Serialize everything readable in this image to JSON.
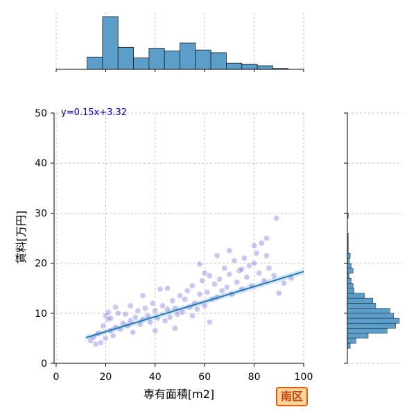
{
  "chart_data": {
    "type": "scatter",
    "xlabel": "専有面積[m2]",
    "ylabel": "賃料[万円]",
    "xlim": [
      0,
      100
    ],
    "ylim": [
      0,
      50
    ],
    "x_ticks": [
      "0",
      "20",
      "40",
      "60",
      "80",
      "100"
    ],
    "y_ticks": [
      "0",
      "10",
      "20",
      "30",
      "40",
      "50"
    ],
    "grid": true,
    "annotation": "y=0.15x+3.32",
    "badge": "南区",
    "regression": {
      "slope": 0.15,
      "intercept": 3.32,
      "x_range": [
        12,
        100
      ]
    },
    "colors": {
      "points": "#3a3ad0",
      "line": "#1f77b4",
      "hist_fill": "#5a9ec9",
      "hist_edge": "#1a1a1a"
    },
    "scatter_points_sample": [
      [
        14,
        4.5
      ],
      [
        15,
        5.2
      ],
      [
        16,
        3.8
      ],
      [
        17,
        6.0
      ],
      [
        18,
        4.1
      ],
      [
        19,
        7.5
      ],
      [
        20,
        9.5
      ],
      [
        20,
        5.0
      ],
      [
        21,
        8.8
      ],
      [
        21,
        10.2
      ],
      [
        22,
        6.5
      ],
      [
        22,
        9.0
      ],
      [
        23,
        5.5
      ],
      [
        24,
        7.2
      ],
      [
        25,
        10.0
      ],
      [
        26,
        6.8
      ],
      [
        27,
        8.0
      ],
      [
        28,
        9.8
      ],
      [
        29,
        7.5
      ],
      [
        30,
        8.5
      ],
      [
        31,
        6.2
      ],
      [
        32,
        9.2
      ],
      [
        33,
        10.5
      ],
      [
        34,
        7.8
      ],
      [
        35,
        8.8
      ],
      [
        36,
        11.0
      ],
      [
        37,
        9.5
      ],
      [
        38,
        8.2
      ],
      [
        39,
        12.0
      ],
      [
        40,
        10.5
      ],
      [
        41,
        9.0
      ],
      [
        42,
        14.8
      ],
      [
        43,
        11.5
      ],
      [
        44,
        8.5
      ],
      [
        45,
        10.8
      ],
      [
        46,
        9.2
      ],
      [
        47,
        12.5
      ],
      [
        48,
        11.0
      ],
      [
        49,
        9.8
      ],
      [
        50,
        13.5
      ],
      [
        51,
        10.2
      ],
      [
        52,
        12.8
      ],
      [
        53,
        14.5
      ],
      [
        54,
        11.2
      ],
      [
        55,
        15.5
      ],
      [
        56,
        12.0
      ],
      [
        57,
        10.8
      ],
      [
        58,
        13.8
      ],
      [
        59,
        16.5
      ],
      [
        60,
        11.5
      ],
      [
        61,
        14.2
      ],
      [
        62,
        17.5
      ],
      [
        63,
        12.8
      ],
      [
        64,
        15.8
      ],
      [
        65,
        13.2
      ],
      [
        66,
        16.8
      ],
      [
        67,
        14.5
      ],
      [
        68,
        19.0
      ],
      [
        69,
        15.2
      ],
      [
        70,
        17.8
      ],
      [
        71,
        13.8
      ],
      [
        72,
        20.5
      ],
      [
        73,
        16.2
      ],
      [
        74,
        18.5
      ],
      [
        75,
        14.8
      ],
      [
        76,
        21.0
      ],
      [
        77,
        17.2
      ],
      [
        78,
        19.5
      ],
      [
        79,
        15.5
      ],
      [
        80,
        20.0
      ],
      [
        81,
        22.0
      ],
      [
        82,
        18.0
      ],
      [
        83,
        24.0
      ],
      [
        84,
        16.5
      ],
      [
        85,
        21.5
      ],
      [
        86,
        19.0
      ],
      [
        88,
        17.5
      ],
      [
        89,
        29.0
      ],
      [
        90,
        14.0
      ],
      [
        92,
        16.0
      ],
      [
        95,
        17.0
      ],
      [
        24,
        11.2
      ],
      [
        30,
        11.5
      ],
      [
        35,
        13.5
      ],
      [
        45,
        15.0
      ],
      [
        55,
        9.5
      ],
      [
        60,
        18.0
      ],
      [
        65,
        21.5
      ],
      [
        70,
        22.5
      ],
      [
        75,
        18.8
      ],
      [
        80,
        23.5
      ],
      [
        85,
        25.0
      ],
      [
        62,
        8.2
      ],
      [
        48,
        7.0
      ],
      [
        40,
        6.5
      ],
      [
        58,
        19.8
      ]
    ],
    "top_histogram": {
      "bin_edges": [
        0,
        6.25,
        12.5,
        18.75,
        25,
        31.25,
        37.5,
        43.75,
        50,
        56.25,
        62.5,
        68.75,
        75,
        81.25,
        87.5,
        93.75,
        100
      ],
      "counts": [
        0,
        0,
        14,
        60,
        25,
        13,
        24,
        21,
        30,
        22,
        19,
        7,
        6,
        4,
        1,
        0
      ]
    },
    "right_histogram": {
      "bin_width": 1,
      "bin_starts": [
        3,
        4,
        5,
        6,
        7,
        8,
        9,
        10,
        11,
        12,
        13,
        14,
        15,
        16,
        17,
        18,
        19,
        20,
        21,
        22,
        23,
        24,
        25,
        26,
        27,
        28,
        29
      ],
      "counts": [
        3,
        9,
        22,
        42,
        51,
        55,
        49,
        45,
        30,
        27,
        18,
        7,
        6,
        4,
        2,
        6,
        4,
        2,
        3,
        1,
        1,
        1,
        1,
        0,
        0,
        0,
        1
      ]
    }
  }
}
